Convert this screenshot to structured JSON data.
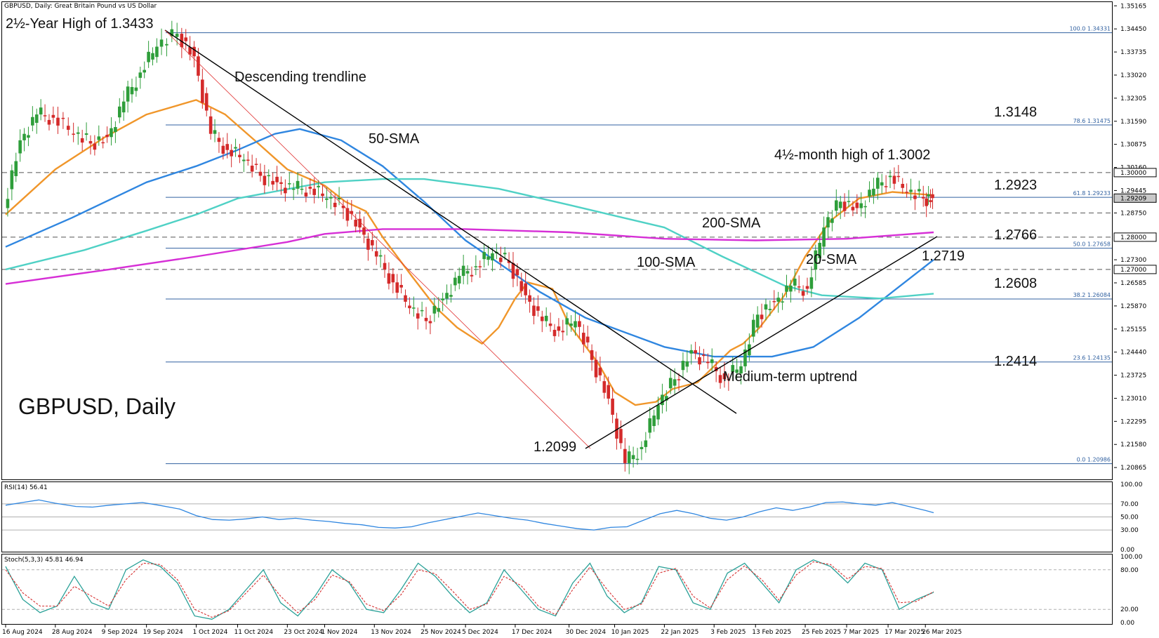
{
  "header": {
    "title": "GBPUSD, Daily:  Great Britain Pound vs US Dollar"
  },
  "colors": {
    "bull": "#2e9e3a",
    "bear": "#d42a2a",
    "sma20": "#f0962a",
    "sma50": "#2f86e0",
    "sma100": "#4fd1c5",
    "sma200": "#d62fd6",
    "fib": "#3060a0",
    "trend": "#000000"
  },
  "chart_data": [
    {
      "type": "candlestick",
      "title": "GBPUSD, Daily",
      "symbol_label": "GBPUSD, Daily",
      "x_tick_labels": [
        "16 Aug 2024",
        "28 Aug 2024",
        "9 Sep 2024",
        "19 Sep 2024",
        "1 Oct 2024",
        "11 Oct 2024",
        "23 Oct 2024",
        "1 Nov 2024",
        "13 Nov 2024",
        "25 Nov 2024",
        "5 Dec 2024",
        "17 Dec 2024",
        "30 Dec 2024",
        "10 Jan 2025",
        "22 Jan 2025",
        "3 Feb 2025",
        "13 Feb 2025",
        "25 Feb 2025",
        "7 Mar 2025",
        "17 Mar 2025",
        "26 Mar 2025"
      ],
      "y_tick_labels": [
        "1.35165",
        "1.34450",
        "1.33735",
        "1.33020",
        "1.32305",
        "1.31590",
        "1.30875",
        "1.30160",
        "1.29445",
        "1.28750",
        "1.28000",
        "1.27300",
        "1.26585",
        "1.25870",
        "1.25155",
        "1.24440",
        "1.23725",
        "1.23010",
        "1.22295",
        "1.21580",
        "1.20865"
      ],
      "y_ticks": [
        1.35165,
        1.3445,
        1.33735,
        1.3302,
        1.32305,
        1.3159,
        1.30875,
        1.3016,
        1.29445,
        1.2875,
        1.28,
        1.273,
        1.26585,
        1.2587,
        1.25155,
        1.2444,
        1.23725,
        1.2301,
        1.22295,
        1.2158,
        1.20865
      ],
      "ylim": [
        1.2052,
        1.3528
      ],
      "current_price": {
        "label": "1.29209",
        "value": 1.29209
      },
      "price_boxes": [
        {
          "label": "1.30000",
          "value": 1.3
        },
        {
          "label": "1.28000",
          "value": 1.28
        },
        {
          "label": "1.27000",
          "value": 1.27
        }
      ],
      "dashed_levels": [
        1.3,
        1.2875,
        1.28,
        1.27
      ],
      "fibonacci": [
        {
          "label": "100.0  1.34331",
          "value": 1.34331,
          "tag": "2½-Year High of 1.3433"
        },
        {
          "label": "78.6  1.31475",
          "value": 1.31475,
          "tag": "1.3148"
        },
        {
          "label": "61.8  1.29233",
          "value": 1.29233,
          "tag": "1.2923"
        },
        {
          "label": "50.0  1.27658",
          "value": 1.27658,
          "tag": "1.2766"
        },
        {
          "label": "38.2  1.26084",
          "value": 1.26084,
          "tag": "1.2608"
        },
        {
          "label": "23.6  1.24135",
          "value": 1.24135,
          "tag": "1.2414"
        },
        {
          "label": "0.0  1.20986",
          "value": 1.20986,
          "tag": ""
        }
      ],
      "annotations": {
        "high": "2½-Year High of 1.3433",
        "low": "1.2099",
        "desc_trendline": "Descending trendline",
        "sma50": "50-SMA",
        "sma100": "100-SMA",
        "sma200": "200-SMA",
        "sma20": "20-SMA",
        "month_high": "4½-month high of 1.3002",
        "uptrend": "Medium-term uptrend",
        "uptrend_level": "1.2719"
      },
      "key_points": {
        "high": {
          "date": "27 Sep 2024",
          "value": 1.3433
        },
        "low": {
          "date": "13 Jan 2025",
          "value": 1.2099
        },
        "recent_high": {
          "date": "20 Mar 2025",
          "value": 1.3002
        },
        "last_close": {
          "date": "28 Mar 2025",
          "value": 1.2921
        }
      },
      "series": [
        {
          "name": "20-SMA",
          "values": [
            1.287,
            1.301,
            1.311,
            1.318,
            1.3225,
            1.318,
            1.309,
            1.301,
            1.296,
            1.291,
            1.288,
            1.28,
            1.268,
            1.258,
            1.252,
            1.247,
            1.252,
            1.261,
            1.266,
            1.264,
            1.253,
            1.241,
            1.232,
            1.228,
            1.229,
            1.233,
            1.235,
            1.24,
            1.245,
            1.247,
            1.252,
            1.262,
            1.274,
            1.285,
            1.292,
            1.294,
            1.293
          ],
          "x": [
            "16 Aug 2024",
            "28 Aug 2024",
            "9 Sep 2024",
            "19 Sep 2024",
            "1 Oct 2024",
            "8 Oct 2024",
            "16 Oct 2024",
            "23 Oct 2024",
            "1 Nov 2024",
            "6 Nov 2024",
            "11 Nov 2024",
            "15 Nov 2024",
            "22 Nov 2024",
            "28 Nov 2024",
            "3 Dec 2024",
            "9 Dec 2024",
            "13 Dec 2024",
            "17 Dec 2024",
            "20 Dec 2024",
            "26 Dec 2024",
            "30 Dec 2024",
            "6 Jan 2025",
            "10 Jan 2025",
            "15 Jan 2025",
            "20 Jan 2025",
            "24 Jan 2025",
            "30 Jan 2025",
            "3 Feb 2025",
            "7 Feb 2025",
            "10 Feb 2025",
            "14 Feb 2025",
            "20 Feb 2025",
            "25 Feb 2025",
            "3 Mar 2025",
            "10 Mar 2025",
            "18 Mar 2025",
            "28 Mar 2025"
          ]
        },
        {
          "name": "50-SMA",
          "values": [
            1.277,
            1.286,
            1.297,
            1.302,
            1.307,
            1.312,
            1.3135,
            1.31,
            1.302,
            1.291,
            1.279,
            1.272,
            1.263,
            1.255,
            1.246,
            1.243,
            1.243,
            1.246,
            1.255,
            1.273
          ],
          "x": [
            "16 Aug 2024",
            "1 Sep 2024",
            "19 Sep 2024",
            "1 Oct 2024",
            "11 Oct 2024",
            "20 Oct 2024",
            "26 Oct 2024",
            "5 Nov 2024",
            "15 Nov 2024",
            "25 Nov 2024",
            "5 Dec 2024",
            "13 Dec 2024",
            "23 Dec 2024",
            "3 Jan 2025",
            "22 Jan 2025",
            "3 Feb 2025",
            "17 Feb 2025",
            "27 Feb 2025",
            "10 Mar 2025",
            "28 Mar 2025"
          ]
        },
        {
          "name": "100-SMA",
          "values": [
            1.27,
            1.276,
            1.282,
            1.287,
            1.292,
            1.297,
            1.298,
            1.298,
            1.295,
            1.29,
            1.283,
            1.274,
            1.265,
            1.262,
            1.261,
            1.2625
          ],
          "x": [
            "16 Aug 2024",
            "4 Sep 2024",
            "19 Sep 2024",
            "1 Oct 2024",
            "11 Oct 2024",
            "1 Nov 2024",
            "15 Nov 2024",
            "25 Nov 2024",
            "13 Dec 2024",
            "30 Dec 2024",
            "22 Jan 2025",
            "5 Feb 2025",
            "20 Feb 2025",
            "1 Mar 2025",
            "15 Mar 2025",
            "28 Mar 2025"
          ]
        },
        {
          "name": "200-SMA",
          "values": [
            1.2655,
            1.27,
            1.274,
            1.2785,
            1.281,
            1.2825,
            1.2825,
            1.2815,
            1.2795,
            1.279,
            1.2795,
            1.2815
          ],
          "x": [
            "16 Aug 2024",
            "10 Sep 2024",
            "1 Oct 2024",
            "23 Oct 2024",
            "1 Nov 2024",
            "15 Nov 2024",
            "5 Dec 2024",
            "30 Dec 2024",
            "22 Jan 2025",
            "13 Feb 2025",
            "7 Mar 2025",
            "28 Mar 2025"
          ]
        }
      ],
      "ohlc_close": {
        "x": [
          "16 Aug 2024",
          "20 Aug 2024",
          "24 Aug 2024",
          "28 Aug 2024",
          "2 Sep 2024",
          "6 Sep 2024",
          "10 Sep 2024",
          "14 Sep 2024",
          "18 Sep 2024",
          "22 Sep 2024",
          "27 Sep 2024",
          "1 Oct 2024",
          "5 Oct 2024",
          "9 Oct 2024",
          "13 Oct 2024",
          "17 Oct 2024",
          "21 Oct 2024",
          "25 Oct 2024",
          "29 Oct 2024",
          "2 Nov 2024",
          "6 Nov 2024",
          "10 Nov 2024",
          "14 Nov 2024",
          "18 Nov 2024",
          "22 Nov 2024",
          "26 Nov 2024",
          "30 Nov 2024",
          "4 Dec 2024",
          "8 Dec 2024",
          "12 Dec 2024",
          "16 Dec 2024",
          "20 Dec 2024",
          "24 Dec 2024",
          "28 Dec 2024",
          "1 Jan 2025",
          "5 Jan 2025",
          "9 Jan 2025",
          "13 Jan 2025",
          "17 Jan 2025",
          "21 Jan 2025",
          "25 Jan 2025",
          "29 Jan 2025",
          "2 Feb 2025",
          "6 Feb 2025",
          "10 Feb 2025",
          "14 Feb 2025",
          "18 Feb 2025",
          "22 Feb 2025",
          "26 Feb 2025",
          "2 Mar 2025",
          "6 Mar 2025",
          "10 Mar 2025",
          "14 Mar 2025",
          "18 Mar 2025",
          "22 Mar 2025",
          "26 Mar 2025",
          "28 Mar 2025"
        ],
        "values": [
          1.289,
          1.31,
          1.318,
          1.317,
          1.312,
          1.309,
          1.311,
          1.322,
          1.331,
          1.339,
          1.343,
          1.336,
          1.312,
          1.307,
          1.304,
          1.299,
          1.297,
          1.295,
          1.295,
          1.292,
          1.289,
          1.283,
          1.274,
          1.266,
          1.258,
          1.254,
          1.261,
          1.268,
          1.271,
          1.275,
          1.272,
          1.262,
          1.254,
          1.251,
          1.254,
          1.242,
          1.23,
          1.21,
          1.215,
          1.228,
          1.236,
          1.245,
          1.241,
          1.236,
          1.24,
          1.256,
          1.26,
          1.265,
          1.264,
          1.283,
          1.291,
          1.289,
          1.295,
          1.299,
          1.294,
          1.292,
          1.2921
        ]
      }
    },
    {
      "type": "line",
      "title": "RSI(14) 56.41",
      "ylabel": "",
      "y_tick_labels": [
        "100.00",
        "70.00",
        "50.00",
        "30.00",
        "0.00"
      ],
      "y_ticks": [
        100,
        70,
        50,
        30,
        0
      ],
      "ylim": [
        0,
        100
      ],
      "levels": [
        70,
        50,
        30
      ],
      "series": [
        {
          "name": "RSI(14)",
          "values": [
            68,
            72,
            76,
            71,
            66,
            65,
            68,
            70,
            72,
            68,
            62,
            52,
            46,
            45,
            47,
            50,
            46,
            48,
            45,
            43,
            40,
            38,
            34,
            33,
            35,
            41,
            46,
            51,
            56,
            52,
            48,
            45,
            40,
            36,
            32,
            30,
            34,
            35,
            45,
            55,
            60,
            55,
            48,
            45,
            50,
            58,
            64,
            60,
            65,
            72,
            73,
            70,
            68,
            72,
            66,
            60,
            56.41
          ],
          "x": [
            "16 Aug 2024",
            "20 Aug 2024",
            "24 Aug 2024",
            "28 Aug 2024",
            "2 Sep 2024",
            "6 Sep 2024",
            "10 Sep 2024",
            "14 Sep 2024",
            "18 Sep 2024",
            "22 Sep 2024",
            "27 Sep 2024",
            "1 Oct 2024",
            "5 Oct 2024",
            "9 Oct 2024",
            "13 Oct 2024",
            "17 Oct 2024",
            "21 Oct 2024",
            "25 Oct 2024",
            "29 Oct 2024",
            "2 Nov 2024",
            "6 Nov 2024",
            "10 Nov 2024",
            "14 Nov 2024",
            "18 Nov 2024",
            "22 Nov 2024",
            "26 Nov 2024",
            "30 Nov 2024",
            "4 Dec 2024",
            "8 Dec 2024",
            "12 Dec 2024",
            "16 Dec 2024",
            "20 Dec 2024",
            "24 Dec 2024",
            "28 Dec 2024",
            "1 Jan 2025",
            "5 Jan 2025",
            "9 Jan 2025",
            "13 Jan 2025",
            "17 Jan 2025",
            "21 Jan 2025",
            "25 Jan 2025",
            "29 Jan 2025",
            "2 Feb 2025",
            "6 Feb 2025",
            "10 Feb 2025",
            "14 Feb 2025",
            "18 Feb 2025",
            "22 Feb 2025",
            "26 Feb 2025",
            "2 Mar 2025",
            "6 Mar 2025",
            "10 Mar 2025",
            "14 Mar 2025",
            "18 Mar 2025",
            "22 Mar 2025",
            "26 Mar 2025",
            "28 Mar 2025"
          ]
        }
      ]
    },
    {
      "type": "line",
      "title": "Stoch(5,3,3) 45.81 46.94",
      "y_tick_labels": [
        "100.00",
        "80.00",
        "20.00",
        "0.00"
      ],
      "y_ticks": [
        100,
        80,
        20,
        0
      ],
      "ylim": [
        0,
        100
      ],
      "levels": [
        80,
        20
      ],
      "series": [
        {
          "name": "%K",
          "values": [
            85,
            35,
            15,
            25,
            70,
            30,
            20,
            80,
            95,
            85,
            60,
            10,
            5,
            20,
            50,
            80,
            30,
            10,
            40,
            80,
            60,
            20,
            15,
            50,
            90,
            70,
            40,
            15,
            30,
            80,
            50,
            20,
            10,
            60,
            90,
            40,
            15,
            30,
            85,
            80,
            30,
            20,
            75,
            90,
            60,
            30,
            80,
            95,
            85,
            60,
            90,
            80,
            20,
            35,
            45.81
          ]
        },
        {
          "name": "%D",
          "values": [
            80,
            45,
            25,
            25,
            55,
            40,
            25,
            65,
            90,
            88,
            65,
            20,
            8,
            18,
            45,
            72,
            40,
            15,
            35,
            72,
            62,
            28,
            18,
            42,
            80,
            74,
            48,
            20,
            28,
            70,
            56,
            25,
            12,
            50,
            84,
            50,
            20,
            28,
            75,
            82,
            40,
            22,
            65,
            86,
            65,
            34,
            72,
            92,
            88,
            66,
            85,
            82,
            30,
            32,
            46.94
          ]
        }
      ]
    }
  ]
}
